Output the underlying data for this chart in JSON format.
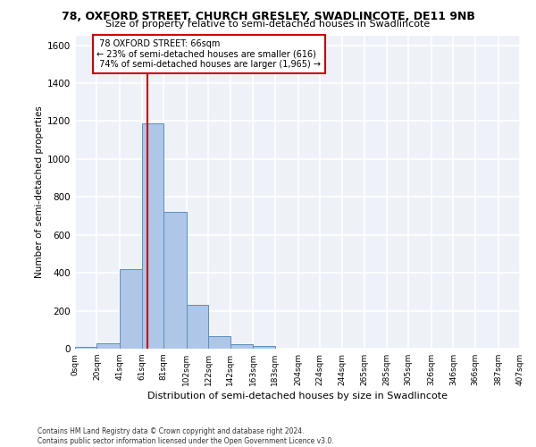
{
  "title_line1": "78, OXFORD STREET, CHURCH GRESLEY, SWADLINCOTE, DE11 9NB",
  "title_line2": "Size of property relative to semi-detached houses in Swadlincote",
  "xlabel": "Distribution of semi-detached houses by size in Swadlincote",
  "ylabel": "Number of semi-detached properties",
  "footnote": "Contains HM Land Registry data © Crown copyright and database right 2024.\nContains public sector information licensed under the Open Government Licence v3.0.",
  "bin_labels": [
    "0sqm",
    "20sqm",
    "41sqm",
    "61sqm",
    "81sqm",
    "102sqm",
    "122sqm",
    "142sqm",
    "163sqm",
    "183sqm",
    "204sqm",
    "224sqm",
    "244sqm",
    "265sqm",
    "285sqm",
    "305sqm",
    "326sqm",
    "346sqm",
    "366sqm",
    "387sqm",
    "407sqm"
  ],
  "bar_values": [
    10,
    30,
    420,
    1190,
    720,
    230,
    65,
    25,
    15,
    0,
    0,
    0,
    0,
    0,
    0,
    0,
    0,
    0,
    0,
    0
  ],
  "bar_color": "#aec6e8",
  "bar_edge_color": "#5a8fc0",
  "property_size": 66,
  "property_label": "78 OXFORD STREET: 66sqm",
  "pct_smaller": 23,
  "count_smaller": 616,
  "pct_larger": 74,
  "count_larger": 1965,
  "vline_color": "#cc0000",
  "annotation_box_color": "#cc0000",
  "ylim": [
    0,
    1650
  ],
  "yticks": [
    0,
    200,
    400,
    600,
    800,
    1000,
    1200,
    1400,
    1600
  ],
  "background_color": "#eef2f8",
  "grid_color": "#ffffff",
  "bin_edges": [
    0,
    20,
    41,
    61,
    81,
    102,
    122,
    142,
    163,
    183,
    204,
    224,
    244,
    265,
    285,
    305,
    326,
    346,
    366,
    387,
    407
  ]
}
